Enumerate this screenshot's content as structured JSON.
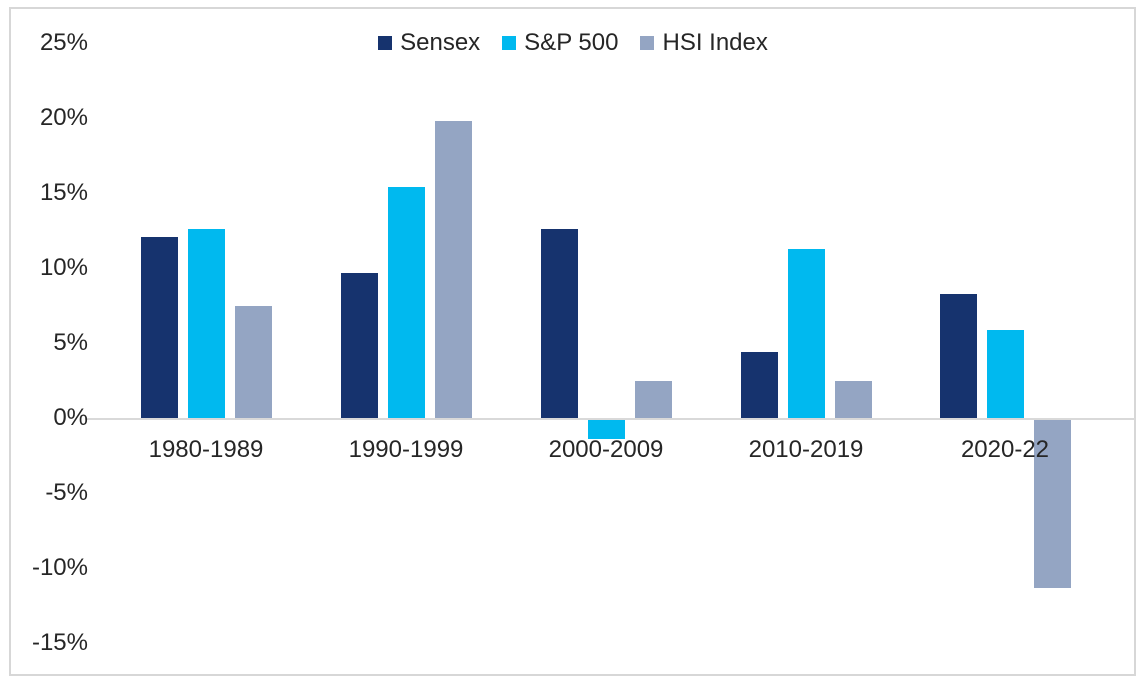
{
  "chart_data": {
    "type": "bar",
    "title": "",
    "subtitle": "",
    "xlabel": "",
    "ylabel": "",
    "categories": [
      "1980-1989",
      "1990-1999",
      "2000-2009",
      "2010-2019",
      "2020-22"
    ],
    "series": [
      {
        "name": "Sensex",
        "color": "#16336E",
        "values": [
          12.1,
          9.7,
          12.6,
          4.4,
          8.3
        ]
      },
      {
        "name": "S&P 500",
        "color": "#00B9EF",
        "values": [
          12.6,
          15.4,
          -1.4,
          11.3,
          5.9
        ]
      },
      {
        "name": "HSI Index",
        "color": "#94A5C3",
        "values": [
          7.5,
          19.8,
          2.5,
          2.5,
          -11.3
        ]
      }
    ],
    "y_ticks": [
      {
        "label": "25%",
        "value": 25
      },
      {
        "label": "20%",
        "value": 20
      },
      {
        "label": "15%",
        "value": 15
      },
      {
        "label": "10%",
        "value": 10
      },
      {
        "label": "5%",
        "value": 5
      },
      {
        "label": "0%",
        "value": 0
      },
      {
        "label": "-5%",
        "value": -5
      },
      {
        "label": "-10%",
        "value": -10
      },
      {
        "label": "-15%",
        "value": -15
      }
    ],
    "ylim": [
      -15,
      25
    ],
    "grid": false,
    "legend_position": "top-center",
    "units": "percent"
  },
  "style": {
    "frame_border_color": "#D7D7D7",
    "axis_line_color": "#D9D9D9",
    "text_color": "#262626",
    "background": "#FFFFFF"
  }
}
